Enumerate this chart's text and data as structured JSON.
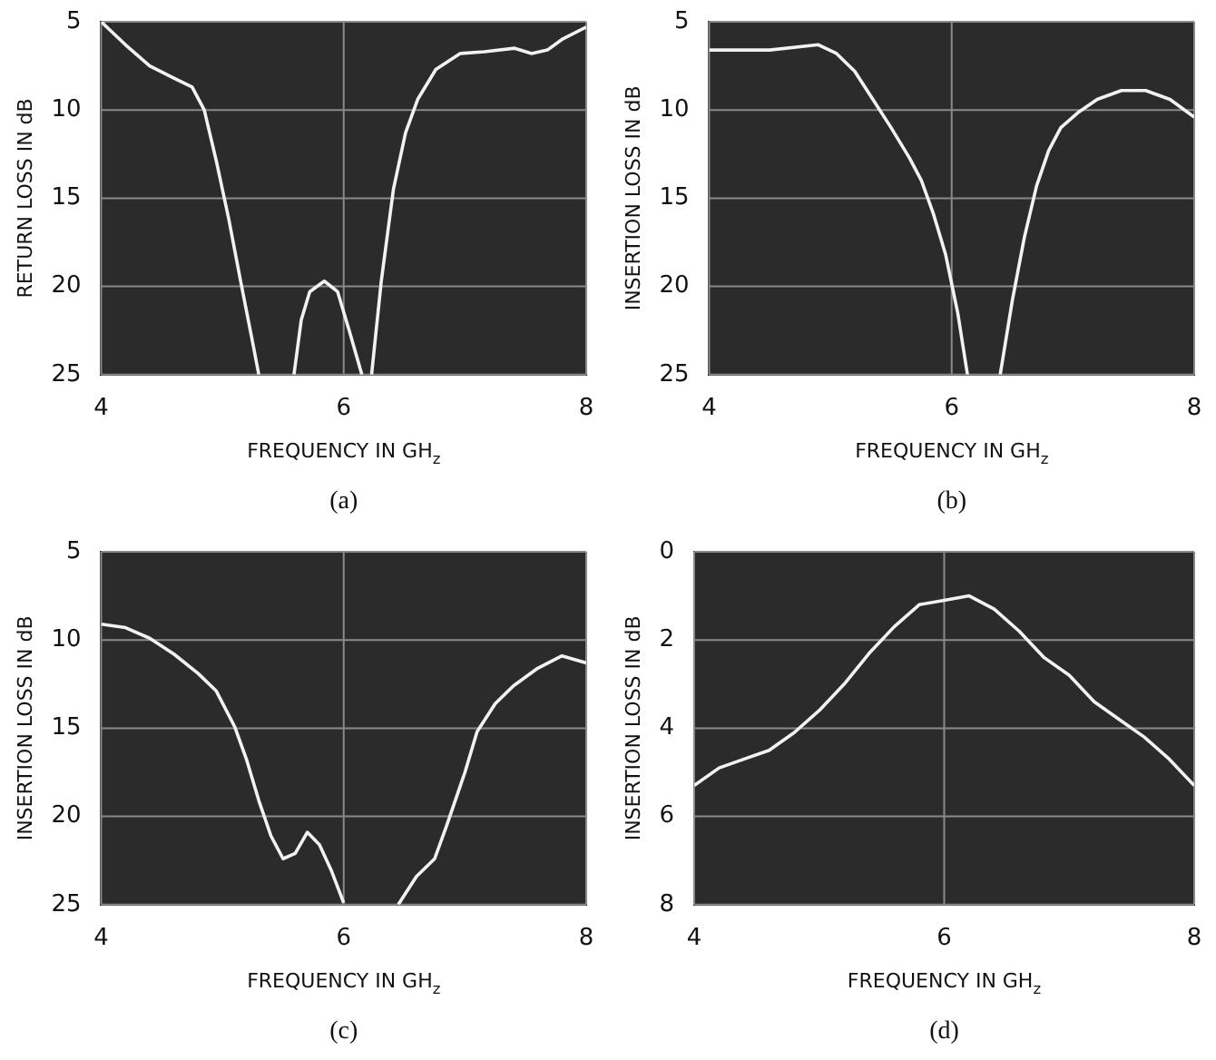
{
  "chart_data": [
    {
      "type": "line",
      "title": "(a)",
      "xlabel": "FREQUENCY IN GH$_{z}$",
      "ylabel": "RETURN LOSS IN dB",
      "xlim": [
        4,
        8
      ],
      "xticks": [
        4,
        6,
        8
      ],
      "ylim": [
        25,
        5
      ],
      "yticks": [
        5,
        10,
        15,
        20,
        25
      ],
      "grid": true,
      "series": [
        {
          "color": "#f2f2f2",
          "x": [
            4.0,
            4.2,
            4.4,
            4.6,
            4.75,
            4.85,
            4.95,
            5.05,
            5.15,
            5.25,
            5.3,
            5.45,
            5.59,
            5.65,
            5.72,
            5.84,
            5.95,
            6.05,
            6.15,
            6.2,
            6.23,
            6.31,
            6.41,
            6.51,
            6.61,
            6.76,
            6.96,
            7.16,
            7.41,
            7.55,
            7.68,
            7.8,
            8.0
          ],
          "values": [
            5.0,
            6.3,
            7.5,
            8.2,
            8.7,
            10.0,
            12.9,
            16.1,
            19.7,
            23.2,
            25,
            null,
            25,
            21.9,
            20.3,
            19.7,
            20.3,
            22.6,
            25,
            null,
            25,
            19.7,
            14.5,
            11.3,
            9.4,
            7.7,
            6.8,
            6.7,
            6.5,
            6.8,
            6.6,
            6.0,
            5.3
          ]
        }
      ]
    },
    {
      "type": "line",
      "title": "(b)",
      "xlabel": "FREQUENCY IN GH$_{z}$",
      "ylabel": "INSERTION LOSS IN dB",
      "xlim": [
        4,
        8
      ],
      "xticks": [
        4,
        6,
        8
      ],
      "ylim": [
        25,
        5
      ],
      "yticks": [
        5,
        10,
        15,
        20,
        25
      ],
      "grid": true,
      "series": [
        {
          "color": "#f2f2f2",
          "x": [
            4.0,
            4.5,
            4.9,
            5.05,
            5.2,
            5.35,
            5.5,
            5.65,
            5.75,
            5.85,
            5.95,
            6.05,
            6.13,
            6.3,
            6.4,
            6.5,
            6.6,
            6.7,
            6.8,
            6.9,
            7.05,
            7.2,
            7.4,
            7.6,
            7.8,
            8.0
          ],
          "values": [
            6.6,
            6.6,
            6.3,
            6.8,
            7.8,
            9.4,
            11.0,
            12.7,
            14.0,
            15.9,
            18.2,
            21.5,
            25,
            null,
            25,
            20.8,
            17.2,
            14.3,
            12.3,
            11.0,
            10.1,
            9.4,
            8.9,
            8.9,
            9.4,
            10.4
          ]
        }
      ]
    },
    {
      "type": "line",
      "title": "(c)",
      "xlabel": "FREQUENCY IN GH$_{z}$",
      "ylabel": "INSERTION LOSS IN dB",
      "xlim": [
        4,
        8
      ],
      "xticks": [
        4,
        6,
        8
      ],
      "ylim": [
        25,
        5
      ],
      "yticks": [
        5,
        10,
        15,
        20,
        25
      ],
      "grid": true,
      "series": [
        {
          "color": "#f2f2f2",
          "x": [
            4.0,
            4.2,
            4.4,
            4.6,
            4.8,
            4.95,
            5.1,
            5.2,
            5.3,
            5.4,
            5.5,
            5.6,
            5.7,
            5.8,
            5.9,
            6.0,
            6.2,
            6.45,
            6.6,
            6.75,
            6.85,
            7.0,
            7.1,
            7.25,
            7.4,
            7.6,
            7.8,
            8.0
          ],
          "values": [
            9.1,
            9.3,
            9.9,
            10.8,
            11.9,
            12.9,
            14.9,
            16.8,
            19.1,
            21.1,
            22.4,
            22.1,
            20.9,
            21.6,
            23.1,
            24.9,
            null,
            25,
            23.4,
            22.4,
            20.5,
            17.5,
            15.2,
            13.6,
            12.6,
            11.6,
            10.9,
            11.3
          ]
        }
      ]
    },
    {
      "type": "line",
      "title": "(d)",
      "xlabel": "FREQUENCY IN GH$_{z}$",
      "ylabel": "INSERTION LOSS IN dB",
      "xlim": [
        4,
        8
      ],
      "xticks": [
        4,
        6,
        8
      ],
      "ylim": [
        8,
        0
      ],
      "yticks": [
        0,
        2,
        4,
        6,
        8
      ],
      "grid": true,
      "series": [
        {
          "color": "#f2f2f2",
          "x": [
            4.0,
            4.2,
            4.4,
            4.6,
            4.8,
            5.0,
            5.2,
            5.4,
            5.6,
            5.8,
            6.0,
            6.2,
            6.4,
            6.6,
            6.8,
            7.0,
            7.2,
            7.4,
            7.6,
            7.8,
            8.0
          ],
          "values": [
            5.3,
            4.9,
            4.7,
            4.5,
            4.1,
            3.6,
            3.0,
            2.3,
            1.7,
            1.2,
            1.1,
            1.0,
            1.3,
            1.8,
            2.4,
            2.8,
            3.4,
            3.8,
            4.2,
            4.7,
            5.3
          ]
        }
      ]
    }
  ]
}
